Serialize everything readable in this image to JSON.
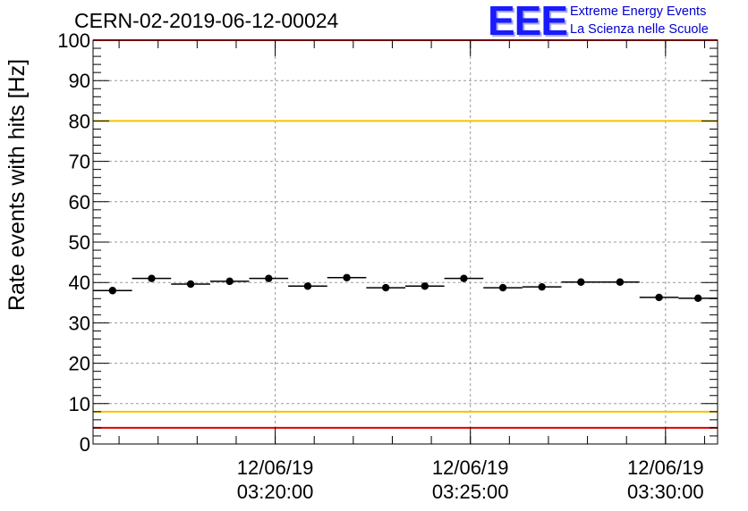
{
  "header": {
    "title": "CERN-02-2019-06-12-00024"
  },
  "logo": {
    "mark": "EEE",
    "line1": "Extreme Energy Events",
    "line2": "La Scienza nelle Scuole"
  },
  "chart_data": {
    "type": "scatter",
    "ylabel": "Rate events with hits [Hz]",
    "ylim": [
      0,
      100
    ],
    "yticks": [
      0,
      10,
      20,
      30,
      40,
      50,
      60,
      70,
      80,
      90,
      100
    ],
    "xlim": [
      "2019-06-12 03:15:20",
      "2019-06-12 03:31:20"
    ],
    "xticks": [
      {
        "time": "2019-06-12 03:20:00",
        "label_date": "12/06/19",
        "label_time": "03:20:00"
      },
      {
        "time": "2019-06-12 03:25:00",
        "label_date": "12/06/19",
        "label_time": "03:25:00"
      },
      {
        "time": "2019-06-12 03:30:00",
        "label_date": "12/06/19",
        "label_time": "03:30:00"
      }
    ],
    "grid": true,
    "reference_lines": [
      {
        "y": 80,
        "color": "#f2c400"
      },
      {
        "y": 8,
        "color": "#f2c400"
      },
      {
        "y": 4,
        "color": "#e00000"
      },
      {
        "y": 100,
        "color": "#e00000"
      }
    ],
    "points": [
      {
        "x": "2019-06-12 03:15:50",
        "y": 38.0
      },
      {
        "x": "2019-06-12 03:16:50",
        "y": 41.0
      },
      {
        "x": "2019-06-12 03:17:50",
        "y": 39.6
      },
      {
        "x": "2019-06-12 03:18:50",
        "y": 40.3
      },
      {
        "x": "2019-06-12 03:19:50",
        "y": 41.0
      },
      {
        "x": "2019-06-12 03:20:50",
        "y": 39.1
      },
      {
        "x": "2019-06-12 03:21:50",
        "y": 41.2
      },
      {
        "x": "2019-06-12 03:22:50",
        "y": 38.7
      },
      {
        "x": "2019-06-12 03:23:50",
        "y": 39.1
      },
      {
        "x": "2019-06-12 03:24:50",
        "y": 41.0
      },
      {
        "x": "2019-06-12 03:25:50",
        "y": 38.7
      },
      {
        "x": "2019-06-12 03:26:50",
        "y": 38.9
      },
      {
        "x": "2019-06-12 03:27:50",
        "y": 40.1
      },
      {
        "x": "2019-06-12 03:28:50",
        "y": 40.1
      },
      {
        "x": "2019-06-12 03:29:50",
        "y": 36.3
      },
      {
        "x": "2019-06-12 03:30:50",
        "y": 36.1
      }
    ],
    "bin_width_seconds": 60,
    "marker_color": "#000000"
  }
}
